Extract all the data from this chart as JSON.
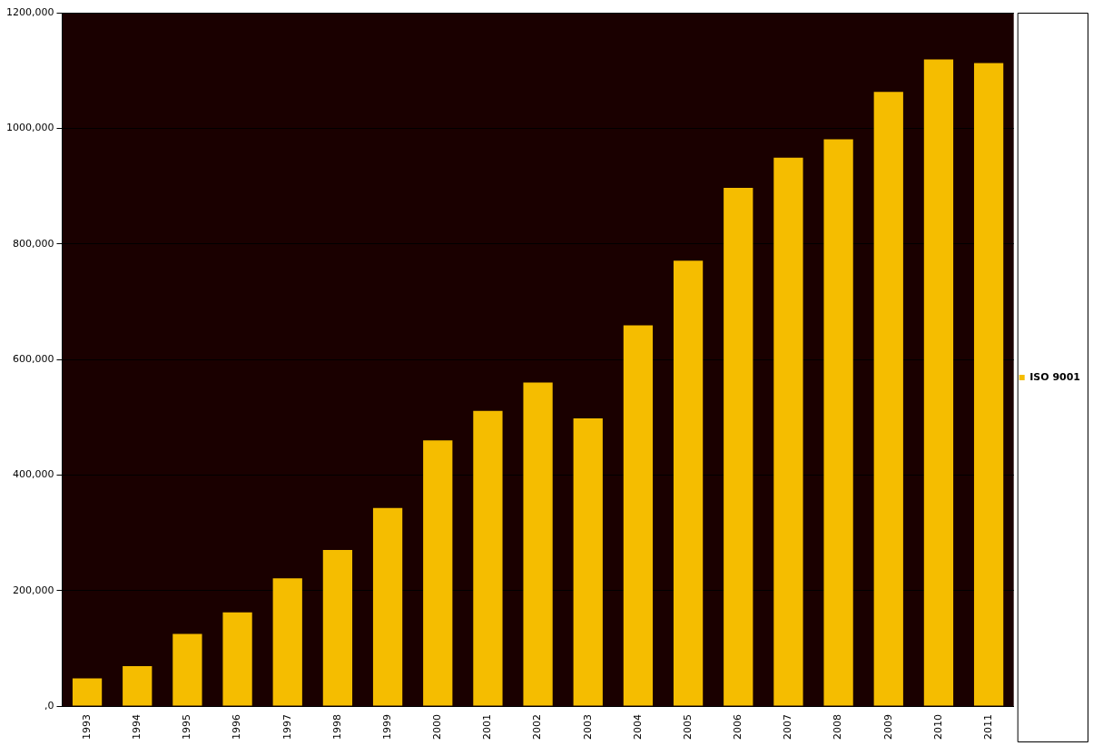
{
  "chart_data": {
    "type": "bar",
    "categories": [
      "1993",
      "1994",
      "1995",
      "1996",
      "1997",
      "1998",
      "1999",
      "2000",
      "2001",
      "2002",
      "2003",
      "2004",
      "2005",
      "2006",
      "2007",
      "2008",
      "2009",
      "2010",
      "2011"
    ],
    "series": [
      {
        "name": "ISO 9001",
        "color": "#f5bd00",
        "values": [
          48000,
          69000,
          125000,
          162000,
          221000,
          270000,
          343000,
          460000,
          511000,
          560000,
          498000,
          659000,
          771000,
          897000,
          949000,
          981000,
          1063000,
          1119000,
          1113000
        ]
      }
    ],
    "ylim": [
      0,
      1200000
    ],
    "yticks": [
      {
        "value": 0,
        "label": ",0"
      },
      {
        "value": 200000,
        "label": "200,000"
      },
      {
        "value": 400000,
        "label": "400,000"
      },
      {
        "value": 600000,
        "label": "600,000"
      },
      {
        "value": 800000,
        "label": "800,000"
      },
      {
        "value": 1000000,
        "label": "1000,000"
      },
      {
        "value": 1200000,
        "label": "1200,000"
      }
    ],
    "grid": "y",
    "legend": "right"
  }
}
